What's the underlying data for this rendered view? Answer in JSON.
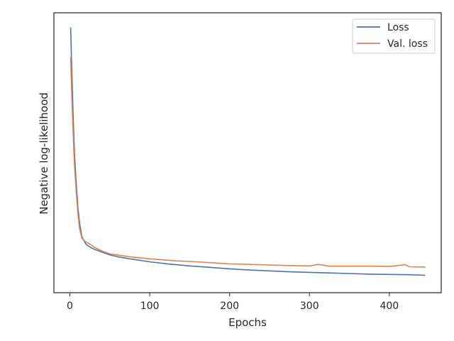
{
  "chart_data": {
    "type": "line",
    "xlabel": "Epochs",
    "ylabel": "Negative log-likelihood",
    "xlim": [
      -20,
      465
    ],
    "ylim": [
      0.05,
      1.0
    ],
    "x_ticks": [
      0,
      100,
      200,
      300,
      400
    ],
    "y_ticks": [],
    "y_tick_labels_shown": false,
    "grid": false,
    "legend_position": "top-right",
    "series": [
      {
        "name": "Loss",
        "color": "#4c72b0",
        "x": [
          1,
          2,
          3,
          4,
          5,
          6,
          8,
          10,
          12,
          15,
          20,
          25,
          30,
          40,
          50,
          60,
          75,
          100,
          125,
          150,
          175,
          200,
          225,
          250,
          275,
          300,
          325,
          350,
          375,
          400,
          425,
          445
        ],
        "y": [
          0.95,
          0.84,
          0.75,
          0.66,
          0.58,
          0.51,
          0.42,
          0.34,
          0.29,
          0.24,
          0.215,
          0.205,
          0.198,
          0.188,
          0.178,
          0.172,
          0.165,
          0.155,
          0.147,
          0.141,
          0.136,
          0.131,
          0.127,
          0.124,
          0.121,
          0.119,
          0.117,
          0.115,
          0.113,
          0.112,
          0.111,
          0.109
        ]
      },
      {
        "name": "Val. loss",
        "color": "#dd8452",
        "x": [
          1,
          2,
          3,
          4,
          5,
          6,
          8,
          10,
          12,
          15,
          20,
          25,
          30,
          40,
          50,
          60,
          75,
          100,
          125,
          133,
          150,
          175,
          200,
          225,
          250,
          275,
          300,
          311,
          325,
          350,
          375,
          400,
          420,
          425,
          445
        ],
        "y": [
          0.85,
          0.75,
          0.67,
          0.6,
          0.53,
          0.47,
          0.39,
          0.32,
          0.27,
          0.235,
          0.222,
          0.215,
          0.205,
          0.192,
          0.182,
          0.178,
          0.172,
          0.165,
          0.16,
          0.158,
          0.156,
          0.152,
          0.148,
          0.146,
          0.144,
          0.142,
          0.141,
          0.146,
          0.14,
          0.14,
          0.14,
          0.139,
          0.145,
          0.138,
          0.137
        ]
      }
    ]
  }
}
